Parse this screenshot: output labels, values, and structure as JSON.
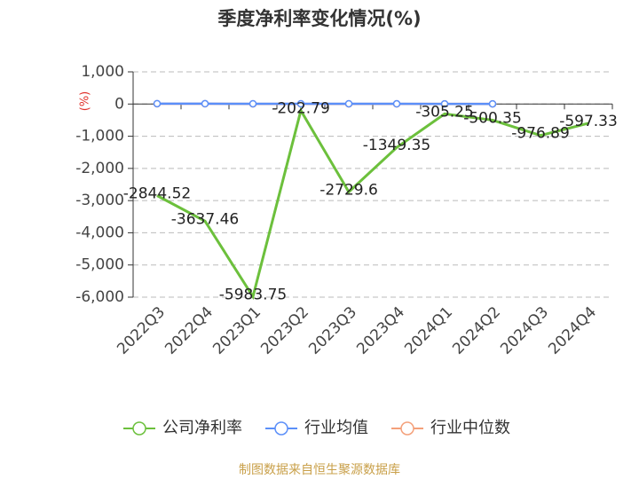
{
  "chart_data": {
    "type": "line",
    "title": "季度净利率变化情况(%)",
    "y_label": "(%)",
    "source": "制图数据来自恒生聚源数据库",
    "categories": [
      "2022Q3",
      "2022Q4",
      "2023Q1",
      "2023Q2",
      "2023Q3",
      "2023Q4",
      "2024Q1",
      "2024Q2",
      "2024Q3",
      "2024Q4"
    ],
    "series": [
      {
        "name": "公司净利率",
        "color": "#6cc03c",
        "values": [
          -2844.52,
          -3637.46,
          -5983.75,
          -202.79,
          -2729.6,
          -1349.35,
          -305.25,
          -500.35,
          -976.89,
          -597.33
        ],
        "show_labels": true
      },
      {
        "name": "行业均值",
        "color": "#5b8ff9",
        "values": [
          12,
          10,
          9,
          8,
          9,
          7,
          6,
          6,
          null,
          null
        ]
      },
      {
        "name": "行业中位数",
        "color": "#f4a07a",
        "values": [
          8,
          7,
          6,
          5,
          6,
          5,
          4,
          4,
          null,
          null
        ]
      }
    ],
    "ylim": [
      -6000,
      1000
    ],
    "yticks": [
      {
        "value": 1000,
        "label": "1,000"
      },
      0,
      {
        "value": -1000,
        "label": "-1,000"
      },
      {
        "value": -2000,
        "label": "-2,000"
      },
      {
        "value": -3000,
        "label": "-3,000"
      },
      {
        "value": -4000,
        "label": "-4,000"
      },
      {
        "value": -5000,
        "label": "-5,000"
      },
      {
        "value": -6000,
        "label": "-6,000"
      }
    ],
    "grid": true
  }
}
